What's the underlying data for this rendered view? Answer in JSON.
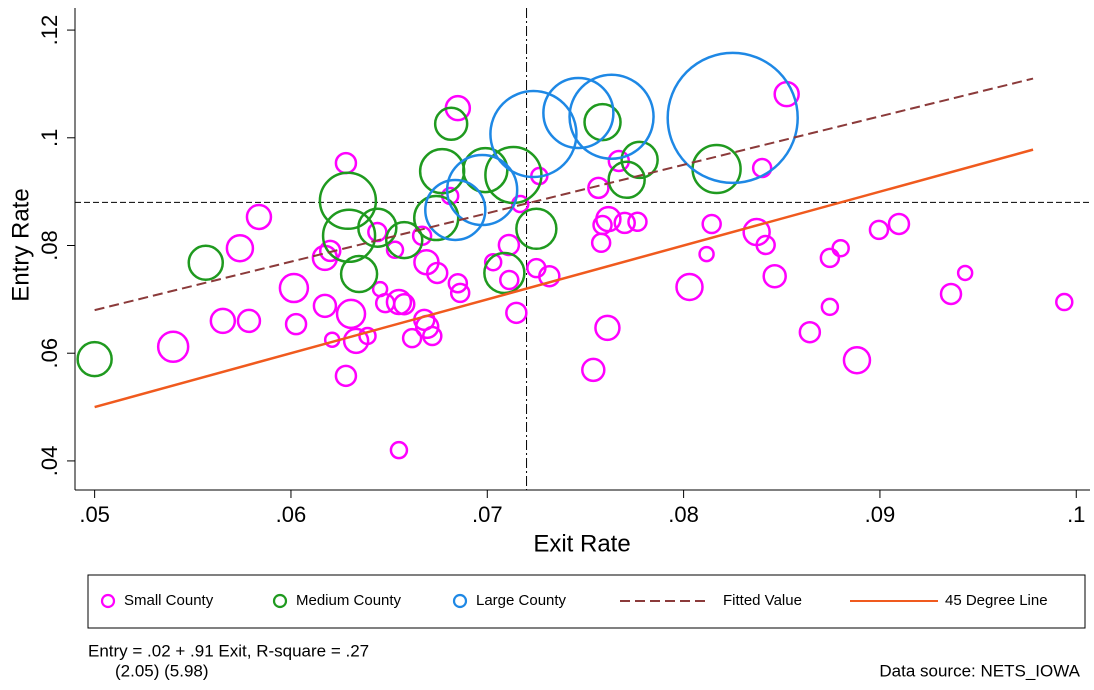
{
  "chart_data": {
    "type": "scatter",
    "x_label": "Exit Rate",
    "y_label": "Entry Rate",
    "xlim": [
      0.049,
      0.1007
    ],
    "ylim": [
      0.0346,
      0.1241
    ],
    "xticks": [
      {
        "value": 0.05,
        "label": ".05"
      },
      {
        "value": 0.06,
        "label": ".06"
      },
      {
        "value": 0.07,
        "label": ".07"
      },
      {
        "value": 0.08,
        "label": ".08"
      },
      {
        "value": 0.09,
        "label": ".09"
      },
      {
        "value": 0.1,
        "label": ".1"
      }
    ],
    "yticks": [
      {
        "value": 0.04,
        "label": ".04"
      },
      {
        "value": 0.06,
        "label": ".06"
      },
      {
        "value": 0.08,
        "label": ".08"
      },
      {
        "value": 0.1,
        "label": ".1"
      },
      {
        "value": 0.12,
        "label": ".12"
      }
    ],
    "grid": false,
    "reference_lines": {
      "x": 0.072,
      "y": 0.088
    },
    "series": [
      {
        "name": "Small County",
        "type": "scatter",
        "color": "#ff00ff",
        "x": [
          0.0628,
          0.0685,
          0.07265,
          0.08525,
          0.0767,
          0.07566,
          0.084,
          0.05837,
          0.0574,
          0.06015,
          0.05653,
          0.05786,
          0.054,
          0.06026,
          0.06173,
          0.062,
          0.06173,
          0.06306,
          0.06332,
          0.0628,
          0.0621,
          0.0639,
          0.06454,
          0.0648,
          0.0655,
          0.06577,
          0.06617,
          0.0655,
          0.06679,
          0.06694,
          0.0672,
          0.0669,
          0.06745,
          0.0685,
          0.06862,
          0.06811,
          0.0703,
          0.07112,
          0.0711,
          0.07148,
          0.07168,
          0.0725,
          0.07316,
          0.07617,
          0.07587,
          0.0758,
          0.0754,
          0.07612,
          0.077,
          0.07765,
          0.0803,
          0.08117,
          0.08143,
          0.08372,
          0.08418,
          0.08464,
          0.08643,
          0.08745,
          0.088,
          0.08745,
          0.08883,
          0.08995,
          0.09097,
          0.09362,
          0.09434,
          0.09939,
          0.0653,
          0.06668,
          0.0644
        ],
        "values": [
          0.0953,
          0.1055,
          0.0929,
          0.1081,
          0.0957,
          0.0907,
          0.0944,
          0.0853,
          0.0795,
          0.0721,
          0.066,
          0.066,
          0.0612,
          0.0654,
          0.0777,
          0.079,
          0.0688,
          0.0673,
          0.0623,
          0.0558,
          0.0625,
          0.0632,
          0.0719,
          0.0693,
          0.0695,
          0.0691,
          0.0628,
          0.042,
          0.0662,
          0.0649,
          0.0632,
          0.0769,
          0.0749,
          0.073,
          0.0712,
          0.0892,
          0.0769,
          0.0736,
          0.0801,
          0.0675,
          0.0877,
          0.0758,
          0.0743,
          0.0849,
          0.0838,
          0.0805,
          0.0569,
          0.0647,
          0.0842,
          0.0844,
          0.0723,
          0.0784,
          0.084,
          0.0825,
          0.0801,
          0.0743,
          0.0639,
          0.0777,
          0.0795,
          0.0686,
          0.0587,
          0.0829,
          0.084,
          0.071,
          0.0749,
          0.0695,
          0.0792,
          0.0818,
          0.0825
        ],
        "sizes": [
          10,
          12,
          8,
          12,
          10,
          10,
          9,
          12,
          13,
          14,
          12,
          11,
          15,
          10,
          12,
          10,
          11,
          14,
          12,
          10,
          7,
          8,
          7,
          9,
          12,
          10,
          9,
          8,
          10,
          11,
          9,
          12,
          10,
          9,
          9,
          8,
          8,
          9,
          10,
          10,
          8,
          9,
          10,
          12,
          9,
          9,
          11,
          12,
          10,
          9,
          13,
          7,
          9,
          13,
          9,
          11,
          10,
          9,
          8,
          8,
          13,
          9,
          10,
          10,
          7,
          8,
          8,
          9,
          9
        ]
      },
      {
        "name": "Medium County",
        "type": "scatter",
        "color": "#1f9a1f",
        "x": [
          0.05,
          0.05566,
          0.0629,
          0.06296,
          0.06347,
          0.0644,
          0.06577,
          0.0674,
          0.06816,
          0.0677,
          0.0699,
          0.07133,
          0.07087,
          0.0725,
          0.07587,
          0.0771,
          0.07776,
          0.08168
        ],
        "values": [
          0.0589,
          0.0768,
          0.0883,
          0.0818,
          0.0747,
          0.0833,
          0.081,
          0.0851,
          0.1026,
          0.0938,
          0.094,
          0.0931,
          0.0749,
          0.0831,
          0.1029,
          0.0922,
          0.0959,
          0.0942
        ],
        "sizes": [
          17,
          17,
          28,
          26,
          18,
          19,
          18,
          22,
          16,
          22,
          22,
          28,
          20,
          20,
          18,
          18,
          18,
          24
        ]
      },
      {
        "name": "Large County",
        "type": "scatter",
        "color": "#1e88e5",
        "x": [
          0.06837,
          0.06974,
          0.07235,
          0.07464,
          0.07633,
          0.0825
        ],
        "values": [
          0.0866,
          0.0903,
          0.1007,
          0.1046,
          0.1039,
          0.1037
        ],
        "sizes": [
          30,
          35,
          43,
          35,
          42,
          65
        ]
      },
      {
        "name": "Fitted Value",
        "type": "line",
        "dash": "dashed",
        "color": "#8b3a3a",
        "x": [
          0.05,
          0.0978
        ],
        "values": [
          0.068,
          0.111
        ]
      },
      {
        "name": "45 Degree Line",
        "type": "line",
        "dash": "solid",
        "color": "#f05a1e",
        "x": [
          0.05,
          0.0978
        ],
        "values": [
          0.05,
          0.0978
        ]
      }
    ],
    "annotations": [
      "Entry = .02 + .91 Exit, R-square = .27",
      "(2.05) (5.98)",
      "Data source: NETS_IOWA"
    ]
  }
}
